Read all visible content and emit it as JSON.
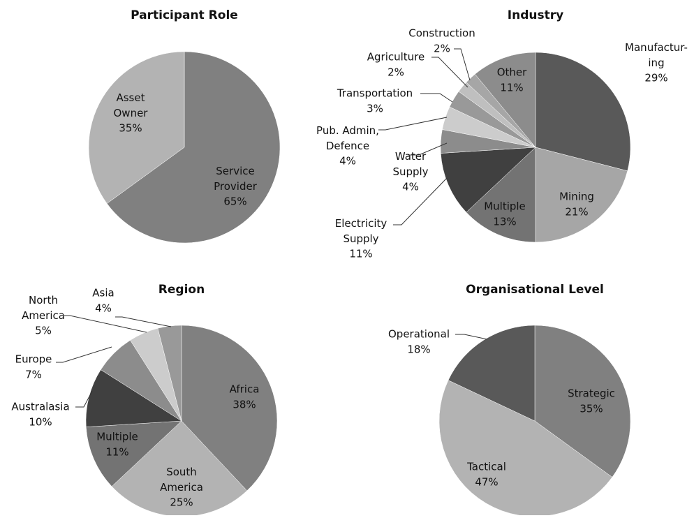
{
  "chart_data": [
    {
      "type": "pie",
      "title": "Participant Role",
      "categories": [
        "Service\nProvider",
        "Asset\nOwner"
      ],
      "values": [
        65,
        35
      ],
      "value_labels": [
        "65%",
        "35%"
      ],
      "colors": [
        "#808080",
        "#b3b3b3"
      ]
    },
    {
      "type": "pie",
      "title": "Industry",
      "categories": [
        "Manufactur-\ning",
        "Mining",
        "Multiple",
        "Electricity\nSupply",
        "Water\nSupply",
        "Pub. Admin,\nDefence",
        "Transportation",
        "Agriculture",
        "Construction",
        "Other"
      ],
      "values": [
        29,
        21,
        13,
        11,
        4,
        4,
        3,
        2,
        2,
        11
      ],
      "value_labels": [
        "29%",
        "21%",
        "13%",
        "11%",
        "4%",
        "4%",
        "3%",
        "2%",
        "2%",
        "11%"
      ],
      "colors": [
        "#595959",
        "#a6a6a6",
        "#737373",
        "#404040",
        "#8c8c8c",
        "#cccccc",
        "#999999",
        "#bfbfbf",
        "#a6a6a6",
        "#8c8c8c"
      ]
    },
    {
      "type": "pie",
      "title": "Region",
      "categories": [
        "Africa",
        "South\nAmerica",
        "Multiple",
        "Australasia",
        "Europe",
        "North\nAmerica",
        "Asia"
      ],
      "values": [
        38,
        25,
        11,
        10,
        7,
        5,
        4
      ],
      "value_labels": [
        "38%",
        "25%",
        "11%",
        "10%",
        "7%",
        "5%",
        "4%"
      ],
      "colors": [
        "#808080",
        "#b3b3b3",
        "#737373",
        "#404040",
        "#8c8c8c",
        "#cccccc",
        "#999999"
      ]
    },
    {
      "type": "pie",
      "title": "Organisational Level",
      "categories": [
        "Strategic",
        "Tactical",
        "Operational"
      ],
      "values": [
        35,
        47,
        18
      ],
      "value_labels": [
        "35%",
        "47%",
        "18%"
      ],
      "colors": [
        "#808080",
        "#b3b3b3",
        "#595959"
      ]
    }
  ]
}
